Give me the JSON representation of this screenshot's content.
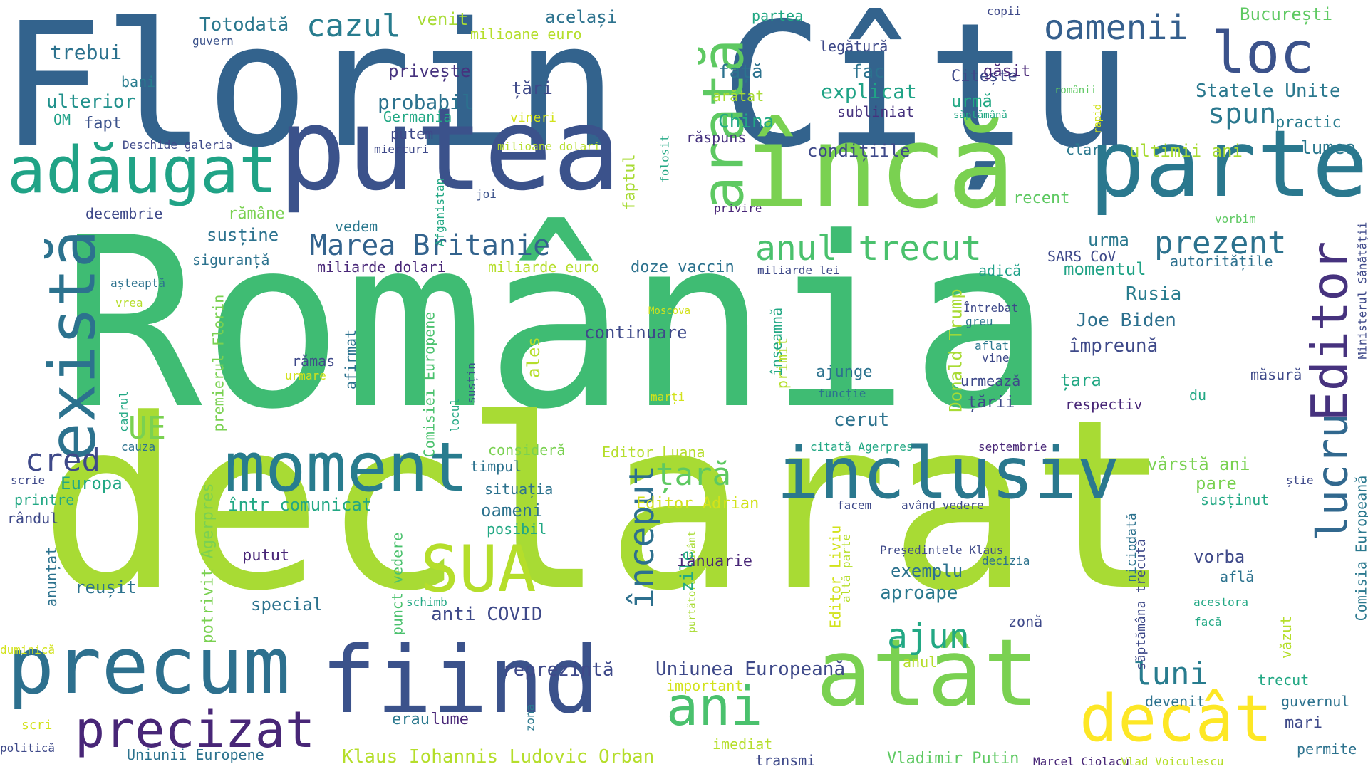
{
  "words": [
    {
      "text": "România",
      "color": "#3fbc73"
    },
    {
      "text": "declarat",
      "color": "#a8db34"
    },
    {
      "text": "Florin Cîțu",
      "color": "#33638d"
    },
    {
      "text": "putea",
      "color": "#3b528b"
    },
    {
      "text": "încă",
      "color": "#7ad151"
    },
    {
      "text": "parte",
      "color": "#2a788e"
    },
    {
      "text": "atât",
      "color": "#7ad151"
    },
    {
      "text": "fiind",
      "color": "#3b528b"
    },
    {
      "text": "precum",
      "color": "#2d708e"
    },
    {
      "text": "inclusiv",
      "color": "#2a788e"
    },
    {
      "text": "moment",
      "color": "#287c8e"
    },
    {
      "text": "adăugat",
      "color": "#20a386"
    },
    {
      "text": "există",
      "color": "#2c728e"
    },
    {
      "text": "arată",
      "color": "#5ec962"
    },
    {
      "text": "decât",
      "color": "#fde725"
    },
    {
      "text": "SUA",
      "color": "#b5de2b"
    },
    {
      "text": "Editor",
      "color": "#46327e"
    },
    {
      "text": "lucru",
      "color": "#31688e"
    },
    {
      "text": "ani",
      "color": "#4ac16d"
    },
    {
      "text": "precizat",
      "color": "#482677"
    },
    {
      "text": "oamenii",
      "color": "#355f8d"
    },
    {
      "text": "loc",
      "color": "#3b528b"
    },
    {
      "text": "cazul",
      "color": "#287c8e"
    },
    {
      "text": "anul trecut",
      "color": "#4ac16d"
    },
    {
      "text": "Marea Britanie",
      "color": "#33638d"
    },
    {
      "text": "prezent",
      "color": "#2c728e"
    },
    {
      "text": "spun",
      "color": "#2a788e"
    },
    {
      "text": "cred",
      "color": "#3e4989"
    },
    {
      "text": "ajun",
      "color": "#22a884"
    },
    {
      "text": "luni",
      "color": "#287c8e"
    },
    {
      "text": "început",
      "color": "#2d708e"
    },
    {
      "text": "UE",
      "color": "#7ad151"
    },
    {
      "text": "țară",
      "color": "#5ec962"
    },
    {
      "text": "Totodată",
      "color": "#2a788e"
    },
    {
      "text": "venit",
      "color": "#a8db34"
    },
    {
      "text": "același",
      "color": "#2c728e"
    },
    {
      "text": "partea",
      "color": "#22a884"
    },
    {
      "text": "copii",
      "color": "#3e4989"
    },
    {
      "text": "București",
      "color": "#5ec962"
    },
    {
      "text": "trebui",
      "color": "#2c728e"
    },
    {
      "text": "guvern",
      "color": "#3b528b"
    },
    {
      "text": "milioane euro",
      "color": "#b5de2b"
    },
    {
      "text": "legătură",
      "color": "#3e4989"
    },
    {
      "text": "bani",
      "color": "#287c8e"
    },
    {
      "text": "ulterior",
      "color": "#21918c"
    },
    {
      "text": "OM",
      "color": "#1fa188"
    },
    {
      "text": "fapt",
      "color": "#3b528b"
    },
    {
      "text": "privește",
      "color": "#46327e"
    },
    {
      "text": "țări",
      "color": "#3e4989"
    },
    {
      "text": "probabil",
      "color": "#2c728e"
    },
    {
      "text": "Germania",
      "color": "#22a884"
    },
    {
      "text": "vineri",
      "color": "#d2e21b"
    },
    {
      "text": "putem",
      "color": "#3e4989"
    },
    {
      "text": "miercuri",
      "color": "#3e4989"
    },
    {
      "text": "milioane dolari",
      "color": "#b5de2b"
    },
    {
      "text": "față",
      "color": "#2c728e"
    },
    {
      "text": "arătat",
      "color": "#a8db34"
    },
    {
      "text": "China",
      "color": "#22a884"
    },
    {
      "text": "fac",
      "color": "#2c728e"
    },
    {
      "text": "explicat",
      "color": "#20a386"
    },
    {
      "text": "subliniat",
      "color": "#46327e"
    },
    {
      "text": "Citește",
      "color": "#3e4989"
    },
    {
      "text": "urmă",
      "color": "#22a884"
    },
    {
      "text": "săptămână",
      "color": "#22a884"
    },
    {
      "text": "găsit",
      "color": "#482677"
    },
    {
      "text": "românii",
      "color": "#5ec962"
    },
    {
      "text": "rapid",
      "color": "#d2e21b"
    },
    {
      "text": "Statele Unite",
      "color": "#2a788e"
    },
    {
      "text": "practic",
      "color": "#287c8e"
    },
    {
      "text": "Deschide galeria",
      "color": "#3e4989"
    },
    {
      "text": "răspuns",
      "color": "#46327e"
    },
    {
      "text": "condițiile",
      "color": "#3e4989"
    },
    {
      "text": "clar",
      "color": "#2a788e"
    },
    {
      "text": "ultimii ani",
      "color": "#a8db34"
    },
    {
      "text": "lumea",
      "color": "#2a788e"
    },
    {
      "text": "folosit",
      "color": "#22a884"
    },
    {
      "text": "faptul",
      "color": "#a8db34"
    },
    {
      "text": "Afganistan",
      "color": "#22a884"
    },
    {
      "text": "joi",
      "color": "#3b528b"
    },
    {
      "text": "decembrie",
      "color": "#3e4989"
    },
    {
      "text": "rămâne",
      "color": "#7ad151"
    },
    {
      "text": "vedem",
      "color": "#2a788e"
    },
    {
      "text": "susține",
      "color": "#2c728e"
    },
    {
      "text": "siguranță",
      "color": "#2c728e"
    },
    {
      "text": "privire",
      "color": "#482677"
    },
    {
      "text": "recent",
      "color": "#5ec962"
    },
    {
      "text": "vorbim",
      "color": "#5ec962"
    },
    {
      "text": "urma",
      "color": "#2a788e"
    },
    {
      "text": "SARS CoV",
      "color": "#3e4989"
    },
    {
      "text": "autoritățile",
      "color": "#2d708e"
    },
    {
      "text": "Ministerul Sănătății",
      "color": "#3e4989"
    },
    {
      "text": "miliarde dolari",
      "color": "#482677"
    },
    {
      "text": "miliarde euro",
      "color": "#b5de2b"
    },
    {
      "text": "doze vaccin",
      "color": "#2c728e"
    },
    {
      "text": "miliarde lei",
      "color": "#3e4989"
    },
    {
      "text": "adică",
      "color": "#1fa188"
    },
    {
      "text": "momentul",
      "color": "#20a386"
    },
    {
      "text": "așteaptă",
      "color": "#2c728e"
    },
    {
      "text": "vrea",
      "color": "#b5de2b"
    },
    {
      "text": "premierul Florin",
      "color": "#7ad151"
    },
    {
      "text": "Comisiei Europene",
      "color": "#4ac16d"
    },
    {
      "text": "Moscova",
      "color": "#d2e21b"
    },
    {
      "text": "continuare",
      "color": "#3e4989"
    },
    {
      "text": "înseamnă",
      "color": "#22a884"
    },
    {
      "text": "Donald Trump",
      "color": "#a8db34"
    },
    {
      "text": "Întrebat",
      "color": "#3e4989"
    },
    {
      "text": "greu",
      "color": "#2c728e"
    },
    {
      "text": "Rusia",
      "color": "#287c8e"
    },
    {
      "text": "Joe Biden",
      "color": "#2d708e"
    },
    {
      "text": "împreună",
      "color": "#3e4989"
    },
    {
      "text": "rămas",
      "color": "#3e4989"
    },
    {
      "text": "afirmat",
      "color": "#2c728e"
    },
    {
      "text": "urmare",
      "color": "#d2e21b"
    },
    {
      "text": "ales",
      "color": "#b5de2b"
    },
    {
      "text": "locul",
      "color": "#22a884"
    },
    {
      "text": "susțin",
      "color": "#3b528b"
    },
    {
      "text": "primit",
      "color": "#b5de2b"
    },
    {
      "text": "aflat",
      "color": "#2a788e"
    },
    {
      "text": "vine",
      "color": "#3e4989"
    },
    {
      "text": "ajunge",
      "color": "#2c728e"
    },
    {
      "text": "urmează",
      "color": "#3e4989"
    },
    {
      "text": "funcție",
      "color": "#2c728e"
    },
    {
      "text": "țara",
      "color": "#22a884"
    },
    {
      "text": "măsură",
      "color": "#3e4989"
    },
    {
      "text": "du",
      "color": "#22a884"
    },
    {
      "text": "cadrul",
      "color": "#22a884"
    },
    {
      "text": "marți",
      "color": "#d2e21b"
    },
    {
      "text": "țării",
      "color": "#3e4989"
    },
    {
      "text": "respectiv",
      "color": "#482677"
    },
    {
      "text": "cerut",
      "color": "#2c728e"
    },
    {
      "text": "cauza",
      "color": "#2c728e"
    },
    {
      "text": "consideră",
      "color": "#7ad151"
    },
    {
      "text": "Editor Luana",
      "color": "#b5de2b"
    },
    {
      "text": "citată Agerpres",
      "color": "#22a884"
    },
    {
      "text": "septembrie",
      "color": "#482677"
    },
    {
      "text": "vârstă ani",
      "color": "#7ad151"
    },
    {
      "text": "Europa",
      "color": "#22a884"
    },
    {
      "text": "timpul",
      "color": "#2c728e"
    },
    {
      "text": "scrie",
      "color": "#3e4989"
    },
    {
      "text": "potrivit Agerpres",
      "color": "#7ad151"
    },
    {
      "text": "printre",
      "color": "#22a884"
    },
    {
      "text": "situația",
      "color": "#2c728e"
    },
    {
      "text": "pare",
      "color": "#7ad151"
    },
    {
      "text": "știe",
      "color": "#3e4989"
    },
    {
      "text": "Comisia Europeană",
      "color": "#2a788e"
    },
    {
      "text": "rândul",
      "color": "#3e4989"
    },
    {
      "text": "într comunicat",
      "color": "#22a884"
    },
    {
      "text": "oameni",
      "color": "#2c728e"
    },
    {
      "text": "Editor Adrian",
      "color": "#d2e21b"
    },
    {
      "text": "facem",
      "color": "#3e4989"
    },
    {
      "text": "având vedere",
      "color": "#3e4989"
    },
    {
      "text": "susținut",
      "color": "#22a884"
    },
    {
      "text": "posibil",
      "color": "#22a884"
    },
    {
      "text": "anunțat",
      "color": "#2c728e"
    },
    {
      "text": "purtătorul cuvânt",
      "color": "#a8db34"
    },
    {
      "text": "Editor Liviu",
      "color": "#d2e21b"
    },
    {
      "text": "altă parte",
      "color": "#b5de2b"
    },
    {
      "text": "Președintele Klaus",
      "color": "#3e4989"
    },
    {
      "text": "decizia",
      "color": "#2c728e"
    },
    {
      "text": "niciodată",
      "color": "#2c728e"
    },
    {
      "text": "săptămâna trecută",
      "color": "#3e4989"
    },
    {
      "text": "vorba",
      "color": "#3e4989"
    },
    {
      "text": "află",
      "color": "#2c728e"
    },
    {
      "text": "zile",
      "color": "#22a884"
    },
    {
      "text": "ianuarie",
      "color": "#482677"
    },
    {
      "text": "putut",
      "color": "#482677"
    },
    {
      "text": "reușit",
      "color": "#2c728e"
    },
    {
      "text": "punct vedere",
      "color": "#4ac16d"
    },
    {
      "text": "exemplu",
      "color": "#2c728e"
    },
    {
      "text": "aproape",
      "color": "#2a788e"
    },
    {
      "text": "special",
      "color": "#2c728e"
    },
    {
      "text": "schimb",
      "color": "#22a884"
    },
    {
      "text": "anti COVID",
      "color": "#3e4989"
    },
    {
      "text": "zonă",
      "color": "#3e4989"
    },
    {
      "text": "acestora",
      "color": "#22a884"
    },
    {
      "text": "văzut",
      "color": "#b5de2b"
    },
    {
      "text": "facă",
      "color": "#22a884"
    },
    {
      "text": "duminică",
      "color": "#d2e21b"
    },
    {
      "text": "reprezintă",
      "color": "#3e4989"
    },
    {
      "text": "Uniunea Europeană",
      "color": "#3e4989"
    },
    {
      "text": "anul",
      "color": "#b5de2b"
    },
    {
      "text": "trecut",
      "color": "#22a884"
    },
    {
      "text": "important",
      "color": "#d2e21b"
    },
    {
      "text": "devenit",
      "color": "#2c728e"
    },
    {
      "text": "guvernul",
      "color": "#2c728e"
    },
    {
      "text": "scri",
      "color": "#d2e21b"
    },
    {
      "text": "erau",
      "color": "#2a788e"
    },
    {
      "text": "lume",
      "color": "#482677"
    },
    {
      "text": "zona",
      "color": "#2a788e"
    },
    {
      "text": "mari",
      "color": "#3e4989"
    },
    {
      "text": "politică",
      "color": "#3e4989"
    },
    {
      "text": "Uniunii Europene",
      "color": "#2c728e"
    },
    {
      "text": "Klaus Iohannis Ludovic Orban",
      "color": "#b5de2b"
    },
    {
      "text": "imediat",
      "color": "#b5de2b"
    },
    {
      "text": "transmi",
      "color": "#3e4989"
    },
    {
      "text": "Vladimir Putin",
      "color": "#5ec962"
    },
    {
      "text": "Marcel Ciolacu",
      "color": "#482677"
    },
    {
      "text": "Vlad Voiculescu",
      "color": "#b5de2b"
    },
    {
      "text": "permite",
      "color": "#2c728e"
    }
  ]
}
